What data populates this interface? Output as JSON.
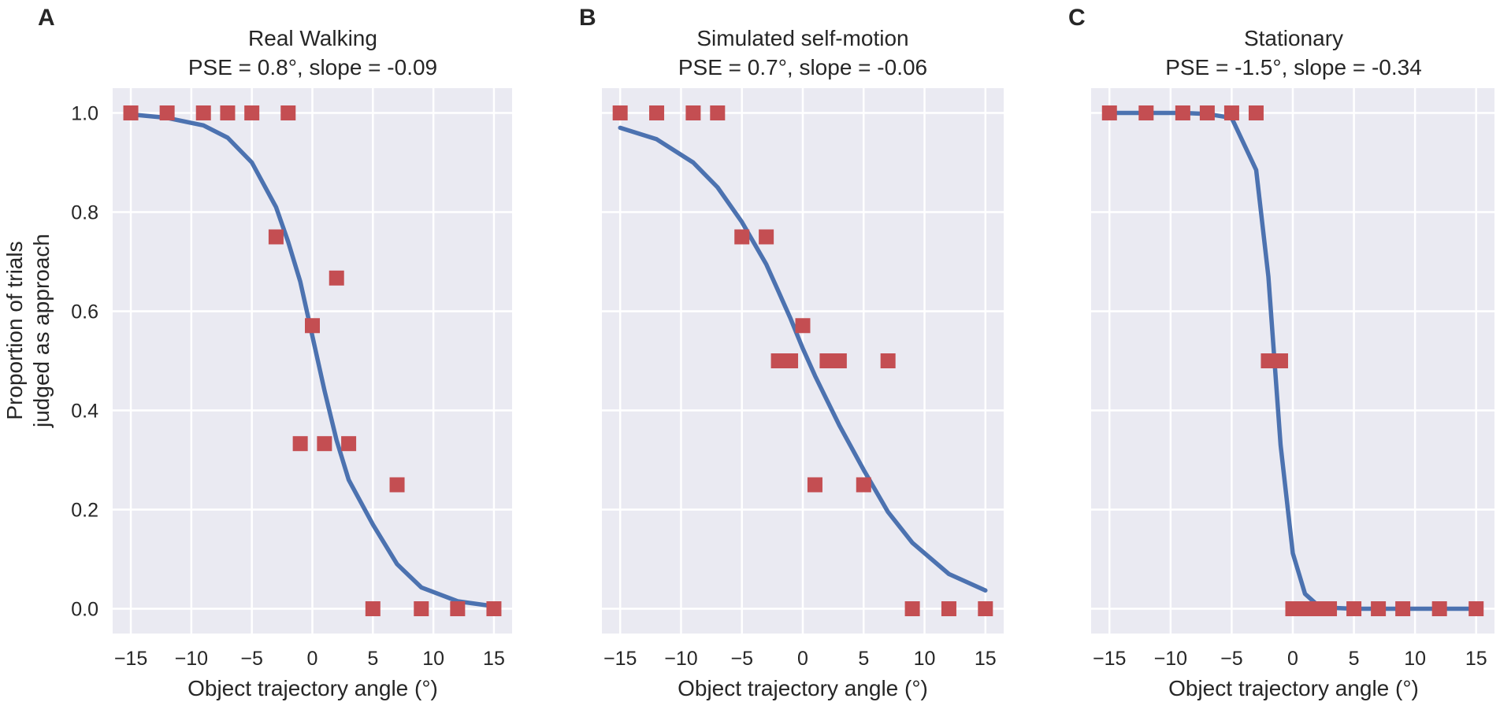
{
  "figure": {
    "ylabel_lines": [
      "Proportion of trials",
      "judged as approach"
    ],
    "colors": {
      "background": "#eaeaf2",
      "grid": "#ffffff",
      "points": "#c44e52",
      "line": "#4c72b0"
    }
  },
  "chart_data": [
    {
      "type": "scatter",
      "panel": "A",
      "title": "Real Walking",
      "subtitle": "PSE = 0.8°, slope = -0.09",
      "xlabel": "Object trajectory angle (°)",
      "ylabel": "Proportion of trials judged as approach",
      "xlim": [
        -16.5,
        16.5
      ],
      "ylim": [
        -0.05,
        1.05
      ],
      "xticks": [
        -15,
        -10,
        -5,
        0,
        5,
        10,
        15
      ],
      "xtick_labels": [
        "−15",
        "−10",
        "−5",
        "0",
        "5",
        "10",
        "15"
      ],
      "yticks": [
        0.0,
        0.2,
        0.4,
        0.6,
        0.8,
        1.0
      ],
      "ytick_labels": [
        "0.0",
        "0.2",
        "0.4",
        "0.6",
        "0.8",
        "1.0"
      ],
      "series": [
        {
          "name": "observed proportions",
          "kind": "markers",
          "x": [
            -15,
            -12,
            -9,
            -7,
            -5,
            -2,
            -3,
            2,
            0,
            -1,
            1,
            3,
            7,
            5,
            9,
            12,
            15
          ],
          "y": [
            1.0,
            1.0,
            1.0,
            1.0,
            1.0,
            1.0,
            0.75,
            0.667,
            0.571,
            0.333,
            0.333,
            0.333,
            0.25,
            0.0,
            0.0,
            0.0,
            0.0
          ]
        },
        {
          "name": "psychometric fit",
          "kind": "line",
          "x": [
            -15,
            -12,
            -9,
            -7,
            -5,
            -3,
            -2,
            -1,
            0,
            1,
            2,
            3,
            5,
            7,
            9,
            12,
            15
          ],
          "y": [
            0.997,
            0.99,
            0.975,
            0.95,
            0.9,
            0.81,
            0.74,
            0.66,
            0.55,
            0.44,
            0.34,
            0.26,
            0.17,
            0.09,
            0.043,
            0.015,
            0.005
          ]
        }
      ]
    },
    {
      "type": "scatter",
      "panel": "B",
      "title": "Simulated self-motion",
      "subtitle": "PSE = 0.7°, slope = -0.06",
      "xlabel": "Object trajectory angle (°)",
      "xlim": [
        -16.5,
        16.5
      ],
      "ylim": [
        -0.05,
        1.05
      ],
      "xticks": [
        -15,
        -10,
        -5,
        0,
        5,
        10,
        15
      ],
      "xtick_labels": [
        "−15",
        "−10",
        "−5",
        "0",
        "5",
        "10",
        "15"
      ],
      "yticks": [
        0.0,
        0.2,
        0.4,
        0.6,
        0.8,
        1.0
      ],
      "series": [
        {
          "name": "observed proportions",
          "kind": "markers",
          "x": [
            -15,
            -12,
            -9,
            -7,
            -5,
            -3,
            0,
            -2,
            -1,
            2,
            3,
            7,
            1,
            5,
            9,
            12,
            15
          ],
          "y": [
            1.0,
            1.0,
            1.0,
            1.0,
            0.75,
            0.75,
            0.571,
            0.5,
            0.5,
            0.5,
            0.5,
            0.5,
            0.25,
            0.25,
            0.0,
            0.0,
            0.0
          ]
        },
        {
          "name": "psychometric fit",
          "kind": "line",
          "x": [
            -15,
            -12,
            -9,
            -7,
            -5,
            -3,
            -2,
            -1,
            0,
            1,
            2,
            3,
            5,
            7,
            9,
            12,
            15
          ],
          "y": [
            0.97,
            0.947,
            0.9,
            0.85,
            0.78,
            0.695,
            0.64,
            0.585,
            0.525,
            0.47,
            0.42,
            0.37,
            0.28,
            0.195,
            0.133,
            0.07,
            0.037
          ]
        }
      ]
    },
    {
      "type": "scatter",
      "panel": "C",
      "title": "Stationary",
      "subtitle": "PSE = -1.5°, slope = -0.34",
      "xlabel": "Object trajectory angle (°)",
      "xlim": [
        -16.5,
        16.5
      ],
      "ylim": [
        -0.05,
        1.05
      ],
      "xticks": [
        -15,
        -10,
        -5,
        0,
        5,
        10,
        15
      ],
      "xtick_labels": [
        "−15",
        "−10",
        "−5",
        "0",
        "5",
        "10",
        "15"
      ],
      "yticks": [
        0.0,
        0.2,
        0.4,
        0.6,
        0.8,
        1.0
      ],
      "series": [
        {
          "name": "observed proportions",
          "kind": "markers",
          "x": [
            -15,
            -12,
            -9,
            -7,
            -5,
            -3,
            -2,
            -1,
            0,
            1,
            2,
            3,
            5,
            7,
            9,
            12,
            15
          ],
          "y": [
            1.0,
            1.0,
            1.0,
            1.0,
            1.0,
            1.0,
            0.5,
            0.5,
            0.0,
            0.0,
            0.0,
            0.0,
            0.0,
            0.0,
            0.0,
            0.0,
            0.0
          ]
        },
        {
          "name": "psychometric fit",
          "kind": "line",
          "x": [
            -15,
            -12,
            -9,
            -7,
            -5,
            -3,
            -2,
            -1,
            0,
            1,
            2,
            3,
            5,
            7,
            9,
            12,
            15
          ],
          "y": [
            1.0,
            1.0,
            1.0,
            0.998,
            0.99,
            0.885,
            0.67,
            0.33,
            0.112,
            0.03,
            0.008,
            0.002,
            0.0,
            0.0,
            0.0,
            0.0,
            0.0
          ]
        }
      ]
    }
  ]
}
